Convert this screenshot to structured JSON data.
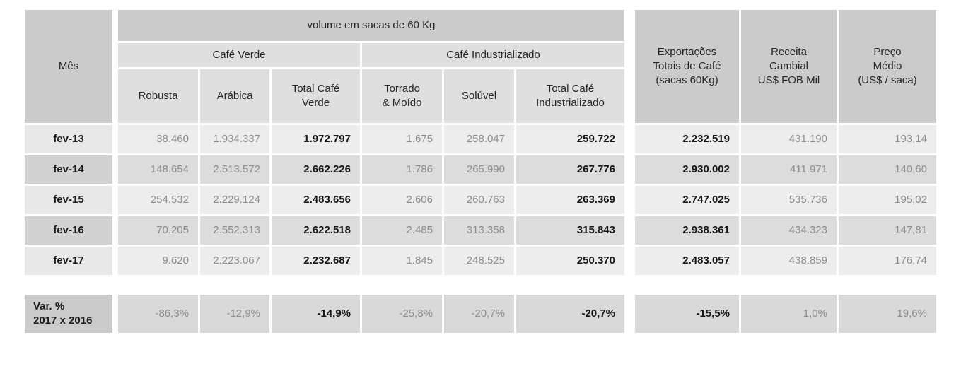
{
  "header": {
    "mes": "Mês",
    "volume_group": "volume em sacas de 60 Kg",
    "cafe_verde_group": "Café Verde",
    "cafe_industrializado_group": "Café Industrializado",
    "robusta": "Robusta",
    "arabica": "Arábica",
    "total_cafe_verde_l1": "Total Café",
    "total_cafe_verde_l2": "Verde",
    "torrado_l1": "Torrado",
    "torrado_l2": "& Moído",
    "soluvel": "Solúvel",
    "total_ind_l1": "Total Café",
    "total_ind_l2": "Industrializado",
    "exportacoes_l1": "Exportações",
    "exportacoes_l2": "Totais de Café",
    "exportacoes_l3": "(sacas 60Kg)",
    "receita_l1": "Receita",
    "receita_l2": "Cambial",
    "receita_l3": "US$ FOB Mil",
    "preco_l1": "Preço",
    "preco_l2": "Médio",
    "preco_l3": "(US$ / saca)"
  },
  "variation_label": {
    "l1": "Var. %",
    "l2": "2017 x 2016"
  },
  "colors": {
    "header_dark": "#cbcbcb",
    "header_light": "#dfdfdf",
    "row_odd_label": "#e8e8e8",
    "row_even_label": "#d2d2d2",
    "row_odd_data": "#ededed",
    "row_even_data": "#dcdcdc",
    "variation_data": "#d9d9d9",
    "text_dark": "#252525",
    "text_gray": "#8c8c8c"
  },
  "chart_data": {
    "type": "table",
    "column_groups": [
      {
        "label": "volume em sacas de 60 Kg",
        "children": [
          "Café Verde",
          "Café Industrializado"
        ]
      },
      {
        "label": "Café Verde",
        "children": [
          "Robusta",
          "Arábica",
          "Total Café Verde"
        ]
      },
      {
        "label": "Café Industrializado",
        "children": [
          "Torrado & Moído",
          "Solúvel",
          "Total Café Industrializado"
        ]
      }
    ],
    "columns": [
      "Mês",
      "Robusta",
      "Arábica",
      "Total Café Verde",
      "Torrado & Moído",
      "Solúvel",
      "Total Café Industrializado",
      "Exportações Totais de Café (sacas 60Kg)",
      "Receita Cambial US$ FOB Mil",
      "Preço Médio (US$ / saca)"
    ],
    "rows": [
      [
        "fev-13",
        "38.460",
        "1.934.337",
        "1.972.797",
        "1.675",
        "258.047",
        "259.722",
        "2.232.519",
        "431.190",
        "193,14"
      ],
      [
        "fev-14",
        "148.654",
        "2.513.572",
        "2.662.226",
        "1.786",
        "265.990",
        "267.776",
        "2.930.002",
        "411.971",
        "140,60"
      ],
      [
        "fev-15",
        "254.532",
        "2.229.124",
        "2.483.656",
        "2.606",
        "260.763",
        "263.369",
        "2.747.025",
        "535.736",
        "195,02"
      ],
      [
        "fev-16",
        "70.205",
        "2.552.313",
        "2.622.518",
        "2.485",
        "313.358",
        "315.843",
        "2.938.361",
        "434.323",
        "147,81"
      ],
      [
        "fev-17",
        "9.620",
        "2.223.067",
        "2.232.687",
        "1.845",
        "248.525",
        "250.370",
        "2.483.057",
        "438.859",
        "176,74"
      ]
    ],
    "variation_row": [
      "Var. % 2017 x 2016",
      "-86,3%",
      "-12,9%",
      "-14,9%",
      "-25,8%",
      "-20,7%",
      "-20,7%",
      "-15,5%",
      "1,0%",
      "19,6%"
    ]
  }
}
